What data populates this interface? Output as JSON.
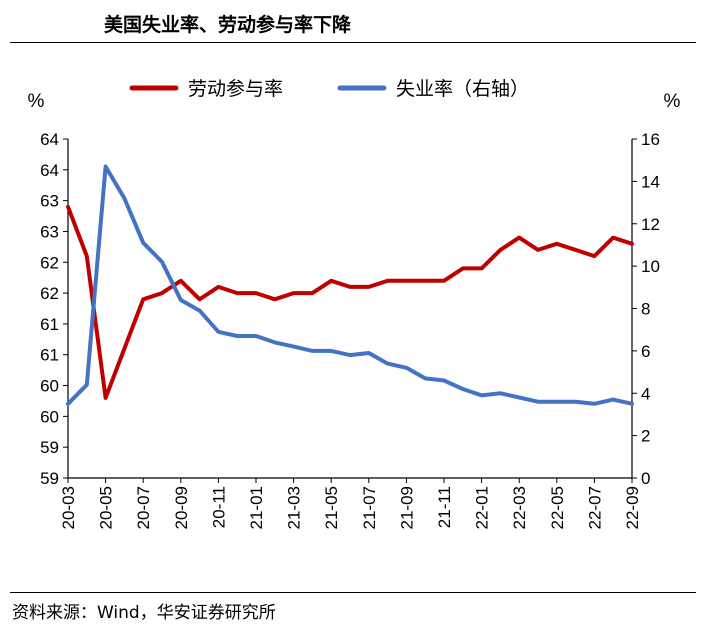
{
  "header": {
    "title": "美国失业率、劳动参与率下降"
  },
  "footer": {
    "source": "资料来源：Wind，华安证券研究所"
  },
  "chart_data": {
    "type": "line",
    "left_unit": "%",
    "right_unit": "%",
    "y_left": {
      "ticks": [
        "64",
        "64",
        "63",
        "63",
        "62",
        "62",
        "61",
        "61",
        "60",
        "60",
        "59",
        "59"
      ],
      "range": [
        59.0,
        64.5
      ]
    },
    "y_right": {
      "ticks": [
        "0",
        "2",
        "4",
        "6",
        "8",
        "10",
        "12",
        "14",
        "16"
      ],
      "range": [
        0,
        16
      ]
    },
    "x_ticks": [
      "20-03",
      "20-05",
      "20-07",
      "20-09",
      "20-11",
      "21-01",
      "21-03",
      "21-05",
      "21-07",
      "21-09",
      "21-11",
      "22-01",
      "22-03",
      "22-05",
      "22-07",
      "22-09"
    ],
    "x_months": [
      "20-03",
      "20-04",
      "20-05",
      "20-06",
      "20-07",
      "20-08",
      "20-09",
      "20-10",
      "20-11",
      "20-12",
      "21-01",
      "21-02",
      "21-03",
      "21-04",
      "21-05",
      "21-06",
      "21-07",
      "21-08",
      "21-09",
      "21-10",
      "21-11",
      "21-12",
      "22-01",
      "22-02",
      "22-03",
      "22-04",
      "22-05",
      "22-06",
      "22-07",
      "22-08",
      "22-09"
    ],
    "series": [
      {
        "name": "劳动参与率",
        "axis": "left",
        "color": "#C00000",
        "values": [
          63.4,
          62.6,
          60.3,
          61.1,
          61.9,
          62.0,
          62.2,
          61.9,
          62.1,
          62.0,
          62.0,
          61.9,
          62.0,
          62.0,
          62.2,
          62.1,
          62.1,
          62.2,
          62.2,
          62.2,
          62.2,
          62.4,
          62.4,
          62.7,
          62.9,
          62.7,
          62.8,
          62.7,
          62.6,
          62.9,
          62.8
        ]
      },
      {
        "name": "失业率（右轴）",
        "axis": "right",
        "color": "#4472C4",
        "values": [
          3.5,
          4.4,
          14.7,
          13.2,
          11.1,
          10.2,
          8.4,
          7.9,
          6.9,
          6.7,
          6.7,
          6.4,
          6.2,
          6.0,
          6.0,
          5.8,
          5.9,
          5.4,
          5.2,
          4.7,
          4.6,
          4.2,
          3.9,
          4.0,
          3.8,
          3.6,
          3.6,
          3.6,
          3.5,
          3.7,
          3.5
        ]
      }
    ],
    "legend_position": "top",
    "grid": false
  }
}
